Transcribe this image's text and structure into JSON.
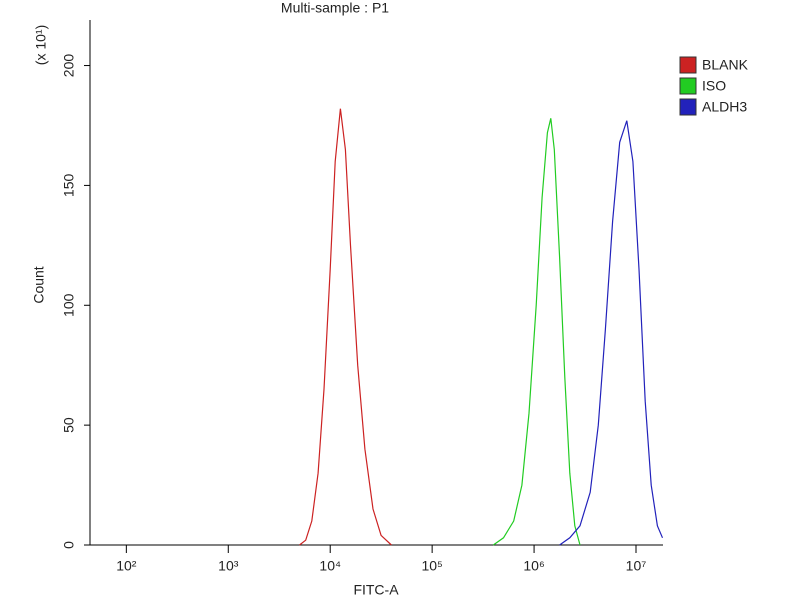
{
  "chart_data": {
    "type": "line",
    "title": "Multi-sample : P1",
    "x_label": "FITC-A",
    "y_label": "Count",
    "y_multiplier": "(x 10¹)",
    "xscale": "log",
    "grid": false,
    "legend": "top-right",
    "xlim": [
      44,
      18400000
    ],
    "ylim": [
      0,
      219
    ],
    "xticks": [
      {
        "value": 100,
        "label": "10²"
      },
      {
        "value": 1000,
        "label": "10³"
      },
      {
        "value": 10000,
        "label": "10⁴"
      },
      {
        "value": 100000,
        "label": "10⁵"
      },
      {
        "value": 1000000,
        "label": "10⁶"
      },
      {
        "value": 10000000,
        "label": "10⁷"
      }
    ],
    "yticks": [
      0,
      50,
      100,
      150,
      200
    ],
    "series": [
      {
        "name": "BLANK",
        "color": "#cc2222",
        "x": [
          5000,
          5750,
          6600,
          7600,
          8700,
          10000,
          11200,
          12600,
          14100,
          15800,
          18600,
          21900,
          26300,
          31600,
          39800
        ],
        "values": [
          0,
          2,
          10,
          30,
          65,
          115,
          160,
          182,
          165,
          125,
          75,
          40,
          15,
          4,
          0
        ]
      },
      {
        "name": "ISO",
        "color": "#22cc22",
        "x": [
          398000,
          501000,
          631000,
          759000,
          891000,
          1050000,
          1200000,
          1350000,
          1460000,
          1580000,
          1780000,
          2000000,
          2240000,
          2510000,
          2820000
        ],
        "values": [
          0,
          3,
          10,
          25,
          55,
          100,
          145,
          172,
          178,
          165,
          120,
          70,
          30,
          8,
          0
        ]
      },
      {
        "name": "ALDH3",
        "color": "#2222bb",
        "x": [
          1780000,
          2240000,
          2820000,
          3550000,
          4270000,
          5010000,
          5890000,
          6920000,
          8130000,
          9330000,
          10700000,
          12300000,
          14100000,
          16200000,
          18200000
        ],
        "values": [
          0,
          3,
          8,
          22,
          50,
          90,
          135,
          168,
          177,
          160,
          115,
          60,
          25,
          8,
          3
        ]
      }
    ]
  }
}
